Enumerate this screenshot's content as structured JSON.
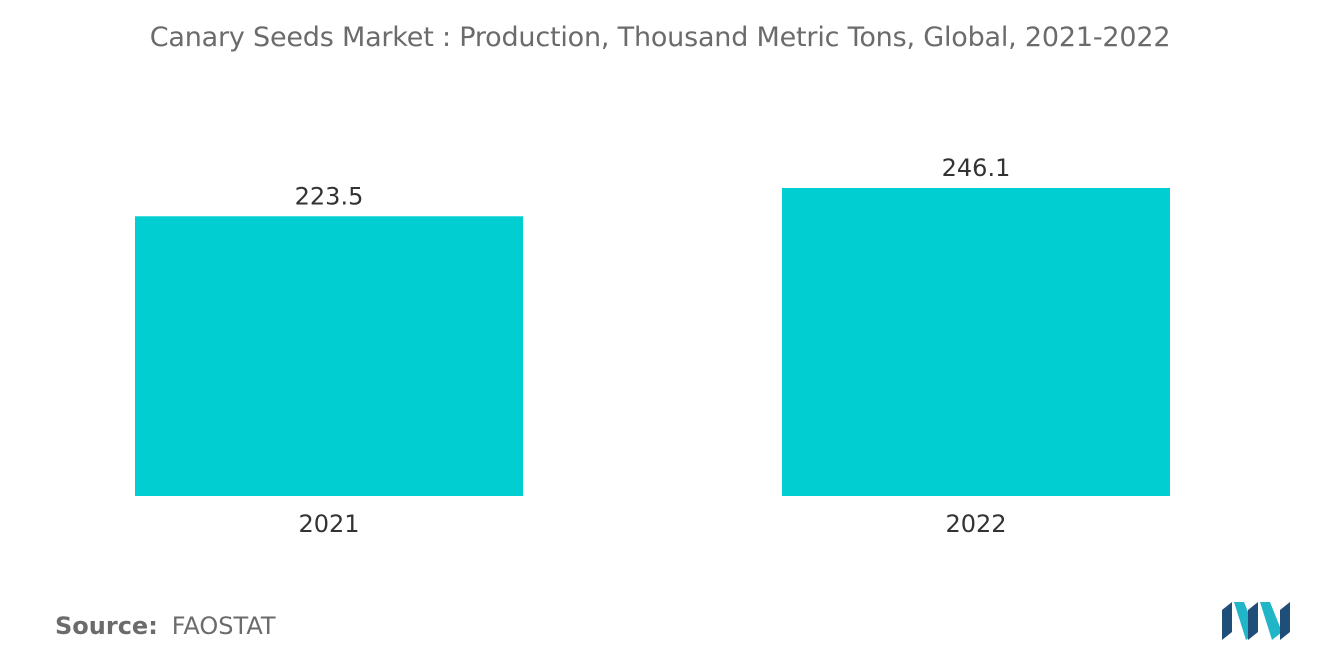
{
  "chart_data": {
    "type": "bar",
    "title": "Canary Seeds Market : Production, Thousand Metric Tons, Global, 2021-2022",
    "categories": [
      "2021",
      "2022"
    ],
    "values": [
      223.5,
      246.1
    ],
    "value_labels": [
      "223.5",
      "246.1"
    ],
    "xlabel": "",
    "ylabel": "",
    "ylim": [
      0,
      246.1
    ],
    "grid": false,
    "legend": "none",
    "bar_color": "#00CED1"
  },
  "source": {
    "label": "Source:",
    "value": "FAOSTAT"
  },
  "colors": {
    "title": "#6b6b6b",
    "text": "#333333",
    "logo_dark": "#1f4e79",
    "logo_teal": "#21b5c8"
  },
  "logo": {
    "icon": "mordor-intelligence-logo-icon"
  }
}
